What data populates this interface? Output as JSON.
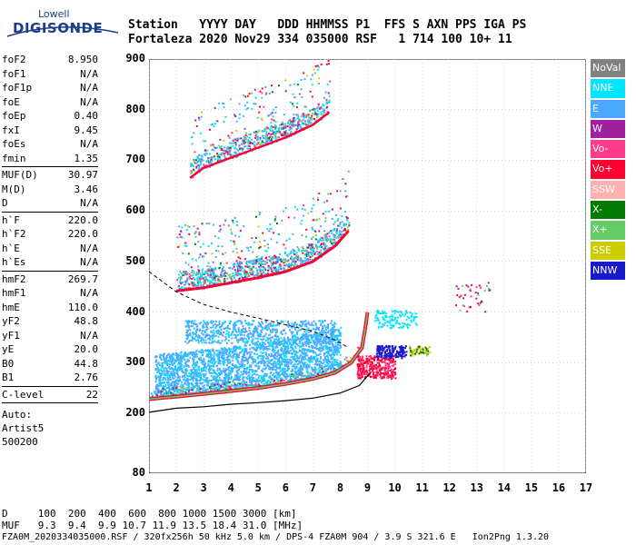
{
  "logo": {
    "brand_small": "Lowell",
    "brand_main": "DIGISONDE"
  },
  "header": {
    "line1": "Station   YYYY DAY   DDD HHMMSS P1  FFS S AXN PPS IGA PS",
    "line2": "Fortaleza 2020 Nov29 334 035000 RSF   1 714 100 10+ 11"
  },
  "parameters": [
    [
      {
        "label": "foF2",
        "value": "8.950"
      },
      {
        "label": "foF1",
        "value": "N/A"
      },
      {
        "label": "foF1p",
        "value": "N/A"
      },
      {
        "label": "foE",
        "value": "N/A"
      },
      {
        "label": "foEp",
        "value": "0.40"
      },
      {
        "label": "fxI",
        "value": "9.45"
      },
      {
        "label": "foEs",
        "value": "N/A"
      },
      {
        "label": "fmin",
        "value": "1.35"
      }
    ],
    [
      {
        "label": "MUF(D)",
        "value": "30.97"
      },
      {
        "label": "M(D)",
        "value": "3.46"
      },
      {
        "label": "D",
        "value": "N/A"
      }
    ],
    [
      {
        "label": "h`F",
        "value": "220.0"
      },
      {
        "label": "h`F2",
        "value": "220.0"
      },
      {
        "label": "h`E",
        "value": "N/A"
      },
      {
        "label": "h`Es",
        "value": "N/A"
      }
    ],
    [
      {
        "label": "hmF2",
        "value": "269.7"
      },
      {
        "label": "hmF1",
        "value": "N/A"
      },
      {
        "label": "hmE",
        "value": "110.0"
      },
      {
        "label": "yF2",
        "value": "48.8"
      },
      {
        "label": "yF1",
        "value": "N/A"
      },
      {
        "label": "yE",
        "value": "20.0"
      },
      {
        "label": "B0",
        "value": "44.8"
      },
      {
        "label": "B1",
        "value": "2.76"
      }
    ]
  ],
  "clevel": {
    "label": "C-level",
    "value": "22"
  },
  "auto_lines": [
    "Auto:",
    "Artist5",
    "500200"
  ],
  "chart_data": {
    "type": "scatter",
    "x_ticks": [
      "1",
      "2",
      "3",
      "4",
      "5",
      "6",
      "7",
      "8",
      "9",
      "10",
      "11",
      "12",
      "13",
      "14",
      "15",
      "16",
      "17"
    ],
    "y_ticks": [
      "900",
      "800",
      "700",
      "600",
      "500",
      "400",
      "300",
      "200",
      "80"
    ],
    "xlim": [
      1,
      17
    ],
    "ylim": [
      80,
      900
    ],
    "grid": true,
    "legend_position": "right",
    "series": [
      {
        "name": "NoVal",
        "color": "#808080"
      },
      {
        "name": "NNE",
        "color": "#00e5ff"
      },
      {
        "name": "E",
        "color": "#4aa8ff"
      },
      {
        "name": "W",
        "color": "#a020a0"
      },
      {
        "name": "Vo-",
        "color": "#ff3b8c"
      },
      {
        "name": "Vo+",
        "color": "#ff0033"
      },
      {
        "name": "SSW",
        "color": "#ffb0b0"
      },
      {
        "name": "X-",
        "color": "#007a00"
      },
      {
        "name": "X+",
        "color": "#66cc66"
      },
      {
        "name": "SSE",
        "color": "#cccc00"
      },
      {
        "name": "NNW",
        "color": "#1a1acd"
      }
    ],
    "profile_solid": [
      [
        1,
        202
      ],
      [
        2,
        210
      ],
      [
        3,
        213
      ],
      [
        4,
        218
      ],
      [
        5,
        221
      ],
      [
        6,
        225
      ],
      [
        7,
        230
      ],
      [
        8,
        240
      ],
      [
        8.7,
        255
      ],
      [
        9.1,
        280
      ]
    ],
    "profile_dashed": [
      [
        1,
        480
      ],
      [
        2,
        440
      ],
      [
        3,
        415
      ],
      [
        4,
        400
      ],
      [
        5,
        388
      ],
      [
        6,
        375
      ],
      [
        7,
        362
      ],
      [
        7.8,
        345
      ],
      [
        8.3,
        330
      ]
    ],
    "trace_F2": [
      [
        1,
        228
      ],
      [
        2,
        233
      ],
      [
        3,
        238
      ],
      [
        4,
        244
      ],
      [
        5,
        250
      ],
      [
        6,
        258
      ],
      [
        7,
        268
      ],
      [
        7.8,
        280
      ],
      [
        8.4,
        300
      ],
      [
        8.8,
        330
      ],
      [
        8.95,
        380
      ],
      [
        9.0,
        400
      ]
    ],
    "trace_F2_2hop": [
      [
        2,
        442
      ],
      [
        3,
        448
      ],
      [
        4,
        458
      ],
      [
        5,
        468
      ],
      [
        6,
        480
      ],
      [
        7,
        500
      ],
      [
        7.8,
        530
      ],
      [
        8.3,
        560
      ]
    ],
    "trace_F2_3hop": [
      [
        2.5,
        665
      ],
      [
        3,
        685
      ],
      [
        4,
        705
      ],
      [
        5,
        725
      ],
      [
        6,
        745
      ],
      [
        7,
        770
      ],
      [
        7.6,
        795
      ]
    ]
  },
  "bottom": {
    "line1": "D     100  200  400  600  800 1000 1500 3000 [km]",
    "line2": "MUF   9.3  9.4  9.9 10.7 11.9 13.5 18.4 31.0 [MHz]",
    "line3": "FZA0M_2020334035000.RSF / 320fx256h 50 kHz 5.0 km / DPS-4 FZA0M 904 / 3.9 S 321.6 E   Ion2Png 1.3.20"
  }
}
